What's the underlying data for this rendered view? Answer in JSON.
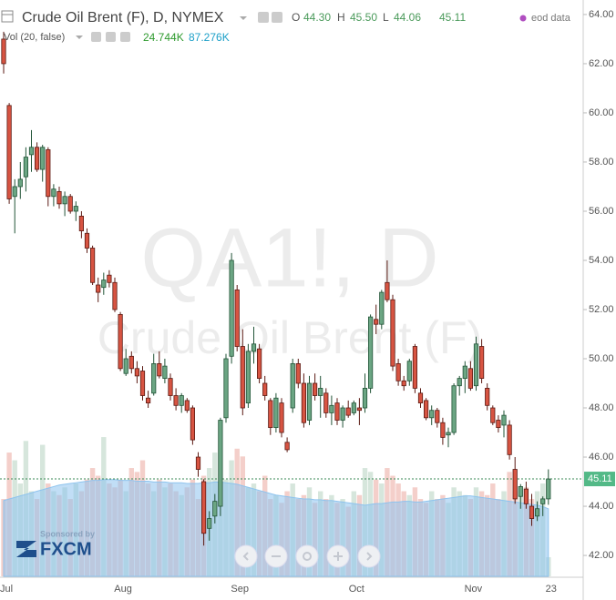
{
  "chart_data": {
    "type": "candlestick",
    "title": "Crude Oil Brent (F), D, NYMEX",
    "watermark": "QA1!, D",
    "watermark_subtitle": "Crude Oil Brent (F)",
    "legend": {
      "o": "O",
      "open": "44.30",
      "h": "H",
      "high": "45.50",
      "l": "L",
      "low": "44.06",
      "close": "45.11",
      "source": "eod data"
    },
    "volume_legend": {
      "title": "Vol (20, false)",
      "volume": "24.744K",
      "ma": "87.276K"
    },
    "sponsor": {
      "text": "Sponsored by",
      "brand": "FXCM"
    },
    "categories": [
      "Jul",
      null,
      null,
      null,
      null,
      null,
      null,
      null,
      null,
      null,
      null,
      null,
      null,
      null,
      null,
      null,
      null,
      null,
      null,
      null,
      null,
      "Aug",
      null,
      null,
      null,
      null,
      null,
      null,
      null,
      null,
      null,
      null,
      null,
      null,
      null,
      null,
      null,
      null,
      null,
      null,
      null,
      null,
      "Sep",
      null,
      null,
      null,
      null,
      null,
      null,
      null,
      null,
      null,
      null,
      null,
      null,
      null,
      null,
      null,
      null,
      null,
      null,
      null,
      null,
      "Oct",
      null,
      null,
      null,
      null,
      null,
      null,
      null,
      null,
      null,
      null,
      null,
      null,
      null,
      null,
      null,
      null,
      null,
      null,
      null,
      null,
      "Nov",
      null,
      null,
      null,
      null,
      null,
      null,
      null,
      null,
      null,
      null,
      null,
      null,
      null,
      "23"
    ],
    "open": [
      63.0,
      60.3,
      56.6,
      57.0,
      57.4,
      58.3,
      58.6,
      57.7,
      58.5,
      56.6,
      56.8,
      56.3,
      56.6,
      56.0,
      55.8,
      55.1,
      54.5,
      53.0,
      52.9,
      53.4,
      53.1,
      51.8,
      49.4,
      50.1,
      49.6,
      49.5,
      48.4,
      48.6,
      49.8,
      49.2,
      49.2,
      48.5,
      48.1,
      48.3,
      48.0,
      46.0,
      45.0,
      43.1,
      43.6,
      44.0,
      47.6,
      50.1,
      52.8,
      50.5,
      48.2,
      50.3,
      50.4,
      49.0,
      48.3,
      47.2,
      48.2,
      46.6,
      48.0,
      49.8,
      49.0,
      47.5,
      49.0,
      48.5,
      48.6,
      47.8,
      48.2,
      47.5,
      48.0,
      47.8,
      48.0,
      48.0,
      48.8,
      51.6,
      51.4,
      53.1,
      52.4,
      49.8,
      49.1,
      49.1,
      50.5,
      48.6,
      48.3,
      47.6,
      47.9,
      47.4,
      46.9,
      47.0,
      48.9,
      49.2,
      49.6,
      48.9,
      50.5,
      48.8,
      48.0,
      47.5,
      47.3,
      47.3,
      45.5,
      44.4,
      44.7,
      44.0,
      43.6,
      44.1,
      44.3
    ],
    "high": [
      63.3,
      60.4,
      57.3,
      58.0,
      58.6,
      59.3,
      58.8,
      58.7,
      58.6,
      57.1,
      57.0,
      56.8,
      56.7,
      56.4,
      56.0,
      55.3,
      54.6,
      53.3,
      53.5,
      53.6,
      53.3,
      51.9,
      50.4,
      50.3,
      49.9,
      49.7,
      48.7,
      50.2,
      50.3,
      50.0,
      49.4,
      48.8,
      48.6,
      48.4,
      48.1,
      46.2,
      45.1,
      43.8,
      44.5,
      47.6,
      50.2,
      54.3,
      53.0,
      51.2,
      50.6,
      51.3,
      50.6,
      49.3,
      48.4,
      48.6,
      48.4,
      46.8,
      50.0,
      50.0,
      49.4,
      49.3,
      49.4,
      49.3,
      48.8,
      48.5,
      48.4,
      48.1,
      48.3,
      48.3,
      48.4,
      49.4,
      51.8,
      52.2,
      52.8,
      54.0,
      52.6,
      50.0,
      49.3,
      50.0,
      50.6,
      48.8,
      48.4,
      48.1,
      48.0,
      47.6,
      47.2,
      49.0,
      49.3,
      49.9,
      49.9,
      50.9,
      50.8,
      49.0,
      48.1,
      47.7,
      47.9,
      47.5,
      46.0,
      44.9,
      45.0,
      44.5,
      44.2,
      44.4,
      45.5
    ],
    "low": [
      61.6,
      56.3,
      55.1,
      56.5,
      56.8,
      57.6,
      57.6,
      57.2,
      56.2,
      56.2,
      56.1,
      55.8,
      55.9,
      55.6,
      54.9,
      54.3,
      53.0,
      52.3,
      52.6,
      52.9,
      51.9,
      49.5,
      49.3,
      49.4,
      49.0,
      48.3,
      48.0,
      48.5,
      49.2,
      49.0,
      48.3,
      47.9,
      47.8,
      47.8,
      46.5,
      45.2,
      42.4,
      42.6,
      43.3,
      43.6,
      47.4,
      49.8,
      50.3,
      47.7,
      48.0,
      49.8,
      49.0,
      48.3,
      46.9,
      47.0,
      46.8,
      46.2,
      47.8,
      48.8,
      47.2,
      47.3,
      48.3,
      47.6,
      47.6,
      47.3,
      47.3,
      47.2,
      47.6,
      47.7,
      47.3,
      47.8,
      48.6,
      51.0,
      51.2,
      52.3,
      49.5,
      48.9,
      48.7,
      48.9,
      48.6,
      48.0,
      47.5,
      47.3,
      47.2,
      46.5,
      46.4,
      46.9,
      48.5,
      48.6,
      48.7,
      48.7,
      49.0,
      47.9,
      47.3,
      47.0,
      46.8,
      45.9,
      44.1,
      43.9,
      43.9,
      43.2,
      43.4,
      43.6,
      44.06
    ],
    "close": [
      62.0,
      56.5,
      57.0,
      57.3,
      58.2,
      58.6,
      57.7,
      58.6,
      56.6,
      56.9,
      56.3,
      56.6,
      56.0,
      56.2,
      55.2,
      54.5,
      53.1,
      52.7,
      53.2,
      53.1,
      52.0,
      49.6,
      50.0,
      49.6,
      49.3,
      48.5,
      48.2,
      49.8,
      49.3,
      49.7,
      48.5,
      48.1,
      48.5,
      47.9,
      46.7,
      45.5,
      42.9,
      43.5,
      44.2,
      47.5,
      50.0,
      54.0,
      50.5,
      48.0,
      50.3,
      50.6,
      49.2,
      48.5,
      47.2,
      48.4,
      47.0,
      46.3,
      49.8,
      49.0,
      47.4,
      49.0,
      48.5,
      48.8,
      47.8,
      48.1,
      47.5,
      48.0,
      47.7,
      48.2,
      47.9,
      48.8,
      51.7,
      51.4,
      52.7,
      52.4,
      49.7,
      49.1,
      48.9,
      49.9,
      48.8,
      48.2,
      47.6,
      47.9,
      47.4,
      46.8,
      47.0,
      48.9,
      49.2,
      49.7,
      48.8,
      50.6,
      49.2,
      48.1,
      47.4,
      47.2,
      47.7,
      46.1,
      44.3,
      44.8,
      44.1,
      43.5,
      43.9,
      44.3,
      45.11
    ],
    "volume": [
      100,
      160,
      150,
      120,
      175,
      110,
      100,
      170,
      120,
      110,
      105,
      115,
      100,
      120,
      110,
      125,
      140,
      130,
      180,
      120,
      115,
      125,
      110,
      140,
      135,
      150,
      120,
      110,
      125,
      115,
      120,
      110,
      105,
      115,
      125,
      100,
      130,
      140,
      160,
      120,
      125,
      150,
      165,
      155,
      115,
      120,
      110,
      130,
      100,
      105,
      95,
      110,
      120,
      100,
      105,
      115,
      95,
      110,
      100,
      105,
      95,
      100,
      90,
      110,
      105,
      140,
      135,
      125,
      120,
      140,
      130,
      120,
      110,
      105,
      115,
      100,
      95,
      110,
      100,
      105,
      95,
      115,
      110,
      105,
      100,
      115,
      110,
      105,
      120,
      100,
      110,
      135,
      110,
      105,
      115,
      100,
      110,
      120,
      24.744
    ],
    "volume_ma": [
      98,
      100,
      102,
      104,
      106,
      108,
      110,
      112,
      114,
      116,
      118,
      119,
      120,
      121,
      122,
      123,
      124,
      124,
      125,
      125,
      125,
      124,
      124,
      124,
      123,
      123,
      123,
      122,
      122,
      122,
      121,
      121,
      121,
      120,
      120,
      120,
      121,
      121,
      122,
      122,
      121,
      120,
      119,
      117,
      115,
      113,
      111,
      109,
      107,
      105,
      104,
      103,
      102,
      101,
      100,
      100,
      99,
      99,
      98,
      98,
      97,
      96,
      95,
      94,
      93,
      92,
      93,
      94,
      94,
      95,
      96,
      96,
      97,
      97,
      96,
      96,
      97,
      98,
      99,
      100,
      101,
      102,
      103,
      104,
      104,
      103,
      102,
      101,
      100,
      99,
      98,
      97,
      96,
      95,
      94,
      93,
      92,
      90,
      87.276
    ],
    "up_color": "#6ba583",
    "down_color": "#d75442",
    "ma_color": "#8ec3ee",
    "ylim": [
      41.15,
      64.59
    ],
    "yticks": [
      {
        "value": 42,
        "label": "42.00"
      },
      {
        "value": 44,
        "label": "44.00"
      },
      {
        "value": 46,
        "label": "46.00"
      },
      {
        "value": 48,
        "label": "48.00"
      },
      {
        "value": 50,
        "label": "50.00"
      },
      {
        "value": 52,
        "label": "52.00"
      },
      {
        "value": 54,
        "label": "54.00"
      },
      {
        "value": 56,
        "label": "56.00"
      },
      {
        "value": 58,
        "label": "58.00"
      },
      {
        "value": 60,
        "label": "60.00"
      },
      {
        "value": 62,
        "label": "62.00"
      },
      {
        "value": 64,
        "label": "64.00"
      }
    ],
    "y2lim": [
      0,
      745
    ],
    "grid": false
  }
}
